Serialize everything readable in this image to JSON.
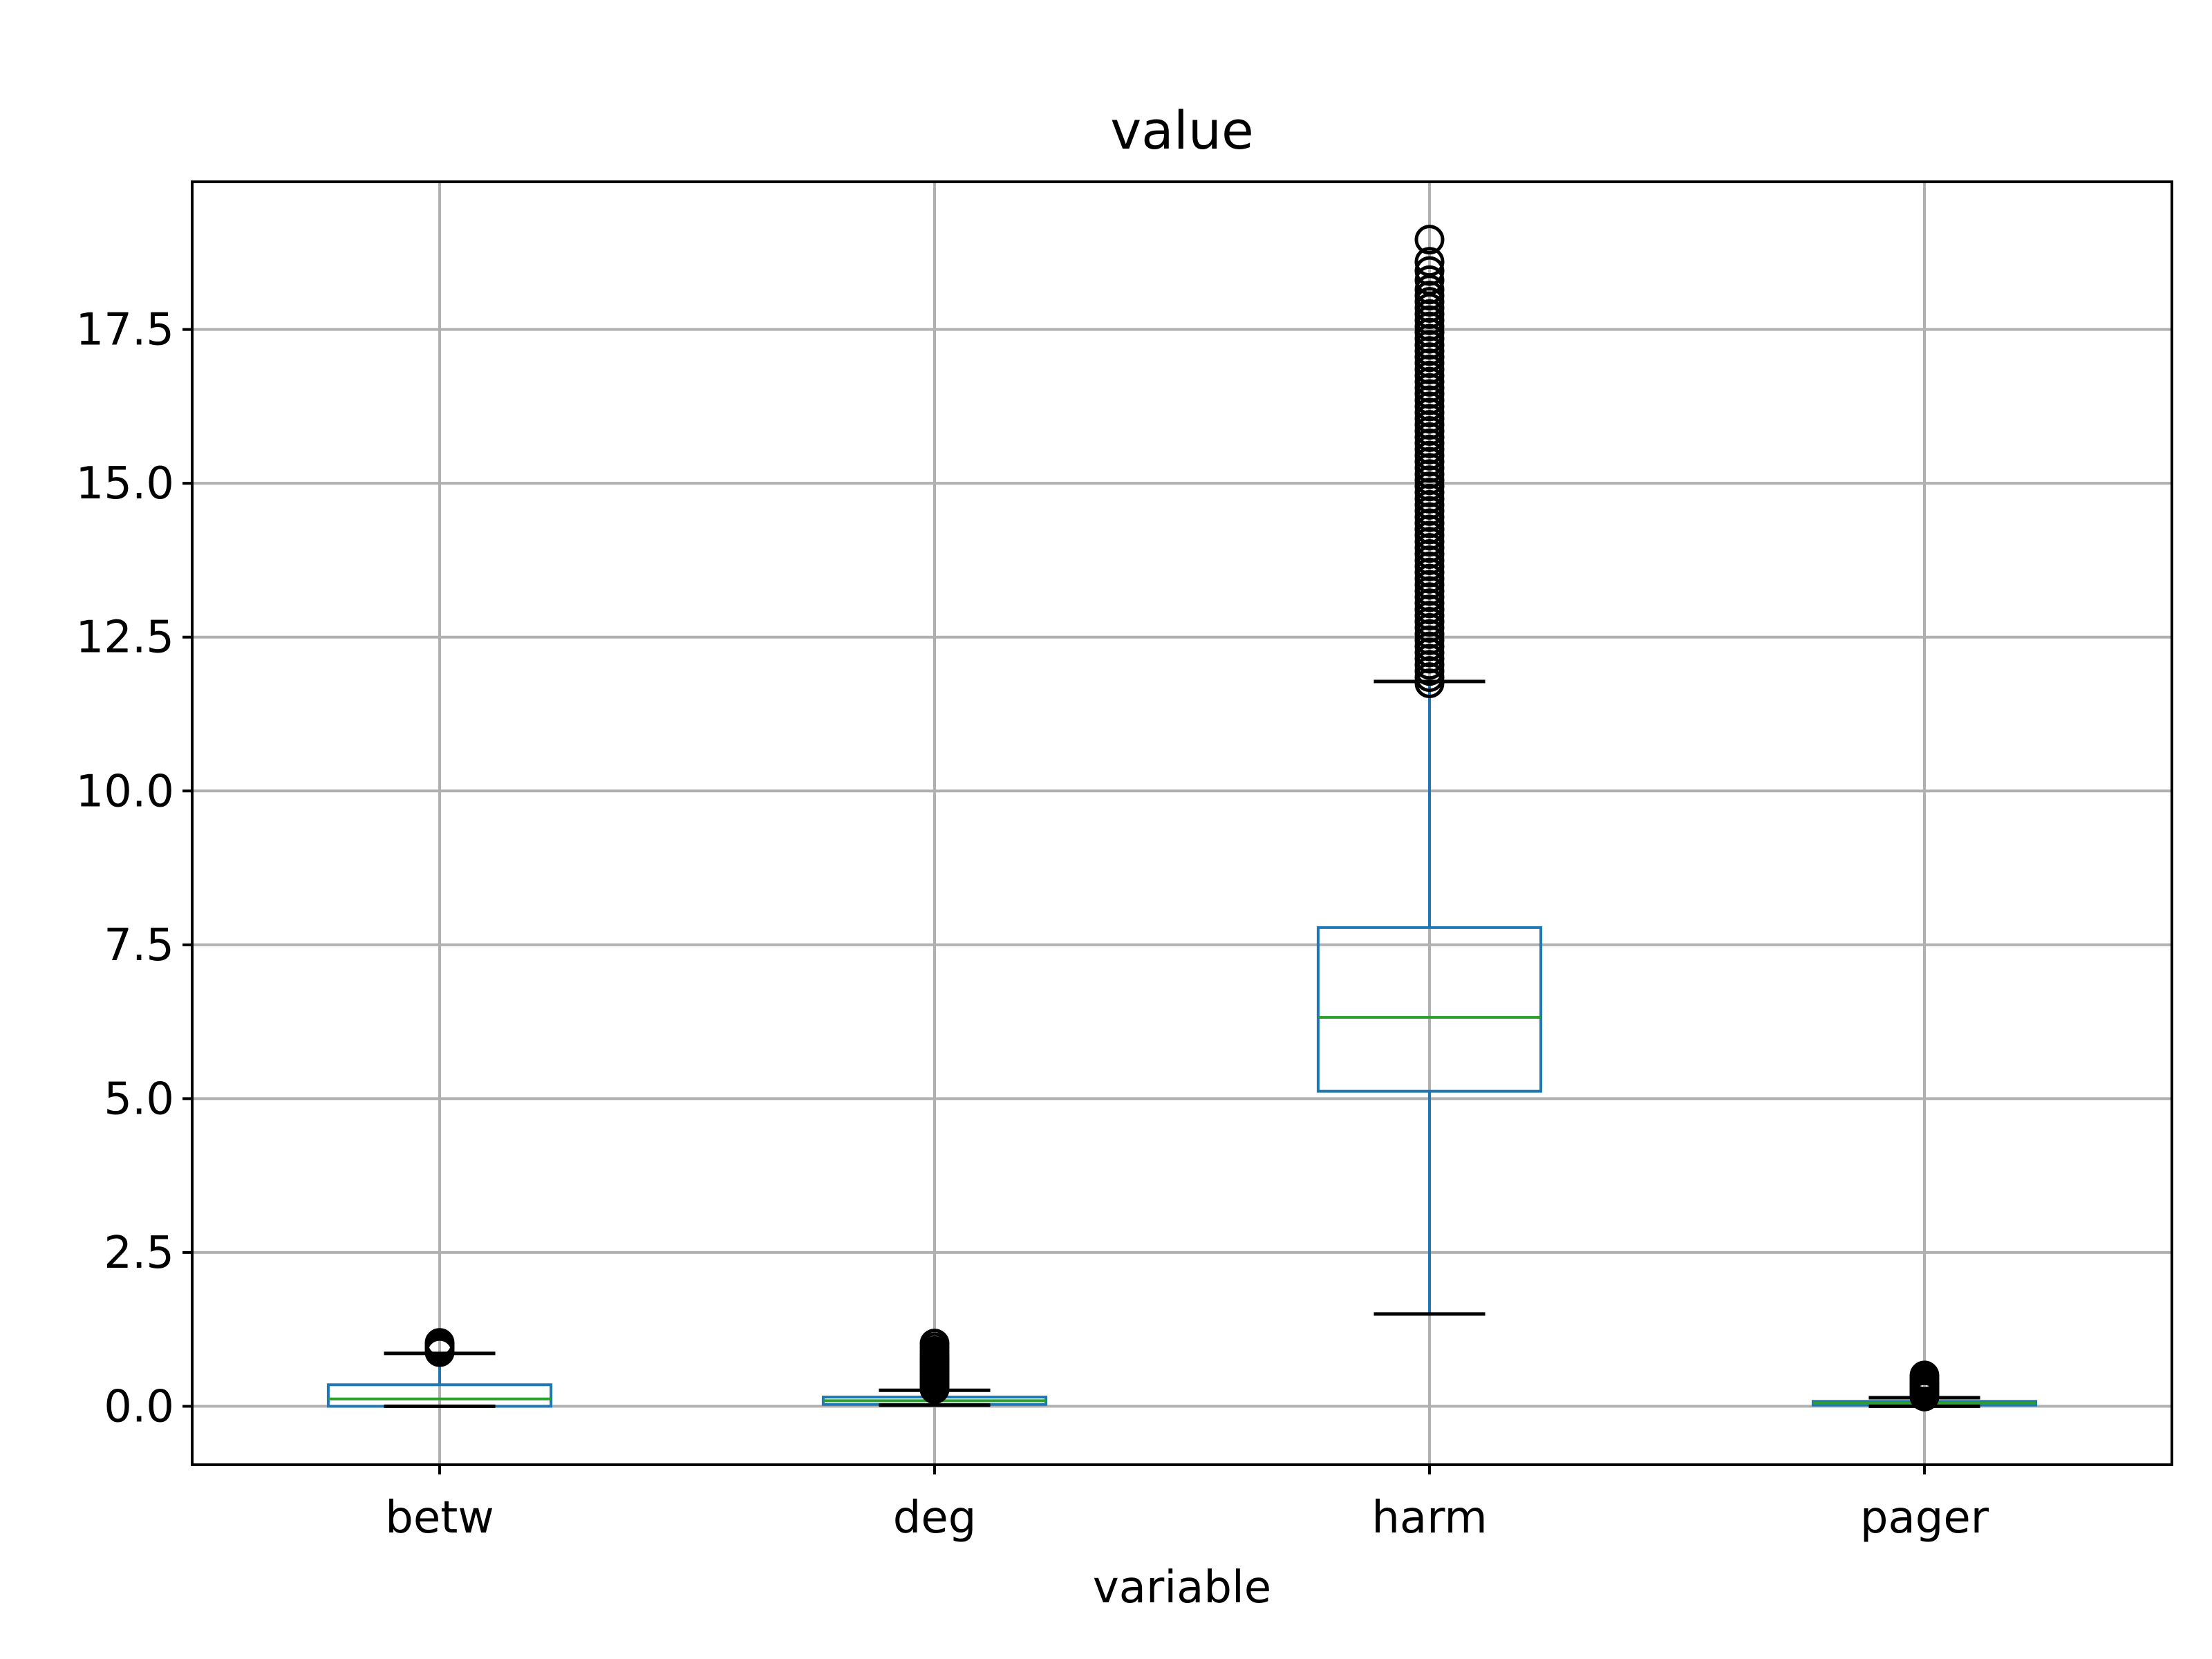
{
  "chart_data": {
    "type": "box",
    "title": "value",
    "xlabel": "variable",
    "ylabel": "",
    "ylim": [
      -0.95,
      19.9
    ],
    "grid": true,
    "yticks": [
      0.0,
      2.5,
      5.0,
      7.5,
      10.0,
      12.5,
      15.0,
      17.5
    ],
    "ytick_labels": [
      "0.0",
      "2.5",
      "5.0",
      "7.5",
      "10.0",
      "12.5",
      "15.0",
      "17.5"
    ],
    "categories": [
      "betw",
      "deg",
      "harm",
      "pager"
    ],
    "boxes": [
      {
        "name": "betw",
        "whisker_low": 0.0,
        "q1": 0.0,
        "median": 0.12,
        "q3": 0.35,
        "whisker_high": 0.86,
        "outliers": [
          0.88,
          0.92,
          0.96,
          1.0,
          1.03
        ]
      },
      {
        "name": "deg",
        "whisker_low": 0.02,
        "q1": 0.03,
        "median": 0.09,
        "q3": 0.15,
        "whisker_high": 0.26,
        "outliers": [
          0.28,
          0.32,
          0.36,
          0.4,
          0.44,
          0.48,
          0.52,
          0.56,
          0.6,
          0.64,
          0.68,
          0.72,
          0.76,
          0.8,
          0.85,
          0.9,
          0.96,
          1.02
        ]
      },
      {
        "name": "harm",
        "whisker_low": 1.5,
        "q1": 5.12,
        "median": 6.32,
        "q3": 7.78,
        "whisker_high": 11.78,
        "outliers": [
          11.75,
          11.85,
          11.95,
          12.05,
          12.15,
          12.25,
          12.35,
          12.45,
          12.55,
          12.65,
          12.75,
          12.85,
          12.95,
          13.05,
          13.15,
          13.25,
          13.35,
          13.45,
          13.55,
          13.65,
          13.75,
          13.85,
          13.95,
          14.05,
          14.15,
          14.25,
          14.35,
          14.45,
          14.55,
          14.65,
          14.75,
          14.85,
          14.95,
          15.05,
          15.15,
          15.25,
          15.35,
          15.45,
          15.55,
          15.65,
          15.75,
          15.85,
          15.95,
          16.05,
          16.15,
          16.25,
          16.35,
          16.45,
          16.55,
          16.65,
          16.75,
          16.85,
          16.95,
          17.05,
          17.15,
          17.25,
          17.35,
          17.45,
          17.55,
          17.65,
          17.75,
          17.85,
          17.95,
          18.05,
          18.15,
          18.3,
          18.45,
          18.6,
          18.96
        ]
      },
      {
        "name": "pager",
        "whisker_low": 0.0,
        "q1": 0.02,
        "median": 0.05,
        "q3": 0.08,
        "whisker_high": 0.14,
        "outliers": [
          0.16,
          0.2,
          0.24,
          0.28,
          0.32,
          0.36,
          0.4,
          0.45,
          0.5
        ]
      }
    ]
  },
  "colors": {
    "box": "#1f77b4",
    "median": "#2ca02c",
    "whisker_cap": "#000000",
    "outlier_edge": "#000000",
    "grid": "#b0b0b0",
    "background": "#ffffff"
  }
}
